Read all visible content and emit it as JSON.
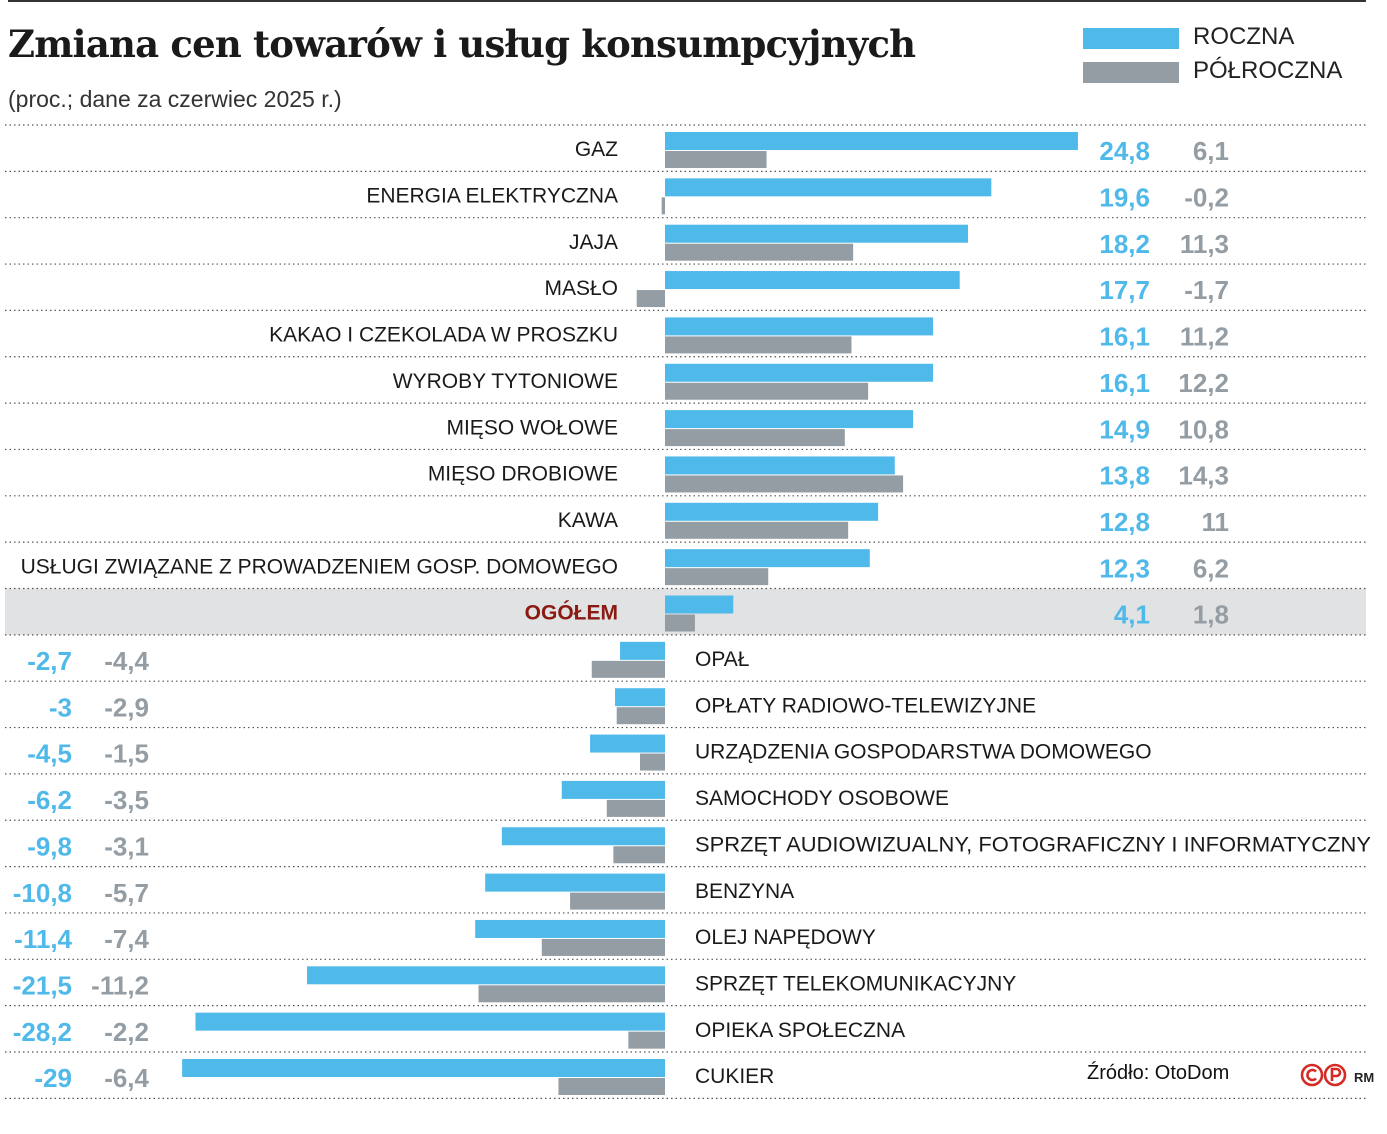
{
  "title": "Zmiana cen towarów i usług konsumpcyjnych",
  "subtitle": "(proc.; dane za czerwiec 2025 r.)",
  "source": "Źródło: OtoDom",
  "logo": {
    "letters": "©P",
    "initials": "RM"
  },
  "colors": {
    "annual": "#4fb9ea",
    "semiannual": "#949da3",
    "highlight_bg": "#e1e2e3",
    "highlight_text": "#8b1a12"
  },
  "chart_data": {
    "type": "bar",
    "orientation": "horizontal",
    "unit": "%",
    "legend_position": "top-right",
    "series": [
      {
        "name": "ROCZNA",
        "key": "annual"
      },
      {
        "name": "PÓŁROCZNA",
        "key": "semiannual"
      }
    ],
    "rows": [
      {
        "label": "GAZ",
        "annual": 24.8,
        "semiannual": 6.1,
        "annual_text": "24,8",
        "semiannual_text": "6,1"
      },
      {
        "label": "ENERGIA ELEKTRYCZNA",
        "annual": 19.6,
        "semiannual": -0.2,
        "annual_text": "19,6",
        "semiannual_text": "-0,2"
      },
      {
        "label": "JAJA",
        "annual": 18.2,
        "semiannual": 11.3,
        "annual_text": "18,2",
        "semiannual_text": "11,3"
      },
      {
        "label": "MASŁO",
        "annual": 17.7,
        "semiannual": -1.7,
        "annual_text": "17,7",
        "semiannual_text": "-1,7"
      },
      {
        "label": "KAKAO I CZEKOLADA W PROSZKU",
        "annual": 16.1,
        "semiannual": 11.2,
        "annual_text": "16,1",
        "semiannual_text": "11,2"
      },
      {
        "label": "WYROBY TYTONIOWE",
        "annual": 16.1,
        "semiannual": 12.2,
        "annual_text": "16,1",
        "semiannual_text": "12,2"
      },
      {
        "label": "MIĘSO WOŁOWE",
        "annual": 14.9,
        "semiannual": 10.8,
        "annual_text": "14,9",
        "semiannual_text": "10,8"
      },
      {
        "label": "MIĘSO DROBIOWE",
        "annual": 13.8,
        "semiannual": 14.3,
        "annual_text": "13,8",
        "semiannual_text": "14,3"
      },
      {
        "label": "KAWA",
        "annual": 12.8,
        "semiannual": 11,
        "annual_text": "12,8",
        "semiannual_text": "11"
      },
      {
        "label": "USŁUGI ZWIĄZANE Z PROWADZENIEM GOSP. DOMOWEGO",
        "annual": 12.3,
        "semiannual": 6.2,
        "annual_text": "12,3",
        "semiannual_text": "6,2"
      },
      {
        "label": "OGÓŁEM",
        "annual": 4.1,
        "semiannual": 1.8,
        "annual_text": "4,1",
        "semiannual_text": "1,8",
        "highlight": true
      },
      {
        "label": "OPAŁ",
        "annual": -2.7,
        "semiannual": -4.4,
        "annual_text": "-2,7",
        "semiannual_text": "-4,4"
      },
      {
        "label": "OPŁATY RADIOWO-TELEWIZYJNE",
        "annual": -3,
        "semiannual": -2.9,
        "annual_text": "-3",
        "semiannual_text": "-2,9"
      },
      {
        "label": "URZĄDZENIA GOSPODARSTWA DOMOWEGO",
        "annual": -4.5,
        "semiannual": -1.5,
        "annual_text": "-4,5",
        "semiannual_text": "-1,5"
      },
      {
        "label": "SAMOCHODY OSOBOWE",
        "annual": -6.2,
        "semiannual": -3.5,
        "annual_text": "-6,2",
        "semiannual_text": "-3,5"
      },
      {
        "label": "SPRZĘT AUDIOWIZUALNY, FOTOGRAFICZNY I INFORMATYCZNY",
        "annual": -9.8,
        "semiannual": -3.1,
        "annual_text": "-9,8",
        "semiannual_text": "-3,1"
      },
      {
        "label": "BENZYNA",
        "annual": -10.8,
        "semiannual": -5.7,
        "annual_text": "-10,8",
        "semiannual_text": "-5,7"
      },
      {
        "label": "OLEJ NAPĘDOWY",
        "annual": -11.4,
        "semiannual": -7.4,
        "annual_text": "-11,4",
        "semiannual_text": "-7,4"
      },
      {
        "label": "SPRZĘT TELEKOMUNIKACYJNY",
        "annual": -21.5,
        "semiannual": -11.2,
        "annual_text": "-21,5",
        "semiannual_text": "-11,2"
      },
      {
        "label": "OPIEKA SPOŁECZNA",
        "annual": -28.2,
        "semiannual": -2.2,
        "annual_text": "-28,2",
        "semiannual_text": "-2,2"
      },
      {
        "label": "CUKIER",
        "annual": -29,
        "semiannual": -6.4,
        "annual_text": "-29",
        "semiannual_text": "-6,4"
      }
    ]
  }
}
